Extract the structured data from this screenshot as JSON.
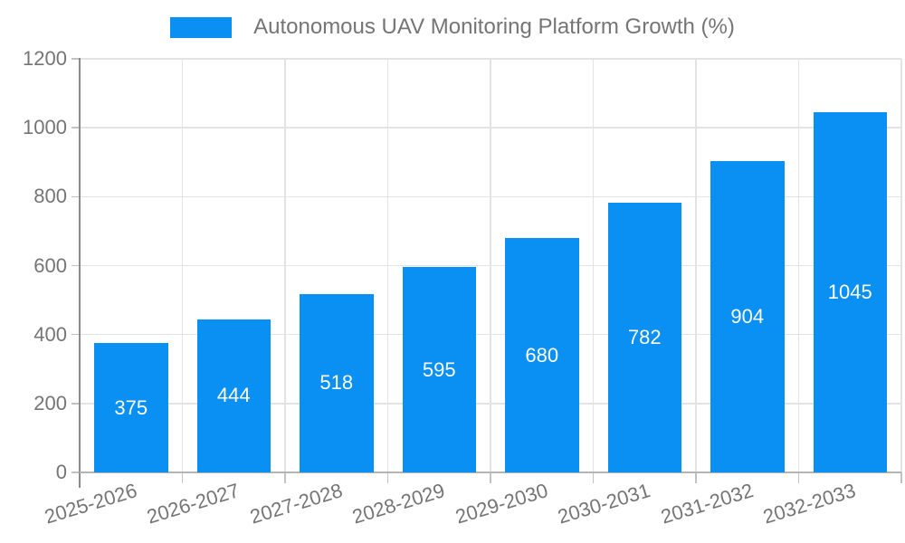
{
  "legend": {
    "label": "Autonomous UAV Monitoring Platform Growth (%)"
  },
  "chart_data": {
    "type": "bar",
    "title": "Autonomous UAV Monitoring Platform Growth (%)",
    "categories": [
      "2025-2026",
      "2026-2027",
      "2027-2028",
      "2028-2029",
      "2029-2030",
      "2030-2031",
      "2031-2032",
      "2032-2033"
    ],
    "series": [
      {
        "name": "Autonomous UAV Monitoring Platform Growth (%)",
        "values": [
          375,
          444,
          518,
          595,
          680,
          782,
          904,
          1045
        ]
      }
    ],
    "values": [
      375,
      444,
      518,
      595,
      680,
      782,
      904,
      1045
    ],
    "value_labels": [
      "375",
      "444",
      "518",
      "595",
      "680",
      "782",
      "904",
      "1045"
    ],
    "xlabel": "",
    "ylabel": "",
    "ylim": [
      0,
      1200
    ],
    "yticks": [
      0,
      200,
      400,
      600,
      800,
      1000,
      1200
    ],
    "grid": true,
    "legend_position": "top",
    "colors": {
      "bar": "#0a8ff2",
      "value_label": "#ffffff",
      "axis_text": "#757575",
      "legend_text": "#757575",
      "grid_line": "#e3e3e3",
      "tick_line": "#c2c2c2",
      "axis_line": "#8a8a8a",
      "baseline": "#b5b5b5",
      "background": "#ffffff"
    }
  }
}
